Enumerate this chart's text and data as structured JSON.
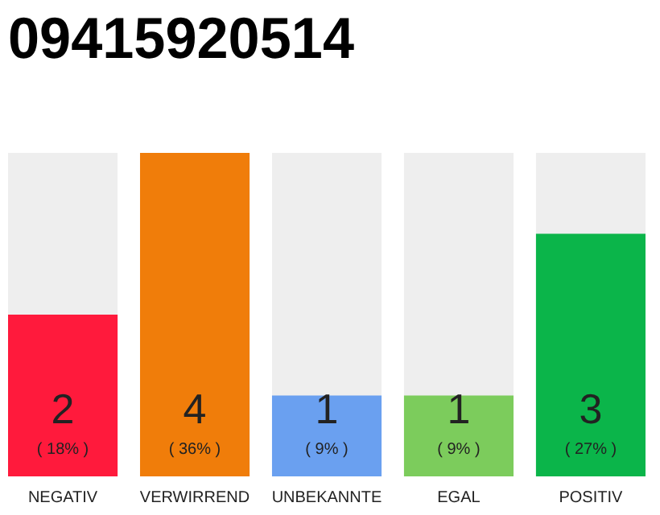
{
  "chart_data": {
    "type": "bar",
    "title": "09415920514",
    "categories": [
      "NEGATIV",
      "VERWIRREND",
      "UNBEKANNTE",
      "EGAL",
      "POSITIV"
    ],
    "values": [
      2,
      4,
      1,
      1,
      3
    ],
    "colors": [
      "#ff1a3c",
      "#f07d0a",
      "#6aa0f0",
      "#7ccc5c",
      "#0bb54a"
    ],
    "data_labels": true,
    "annotations": [
      "( 18% )",
      "( 36% )",
      "( 9% )",
      "( 9% )",
      "( 27% )"
    ]
  }
}
